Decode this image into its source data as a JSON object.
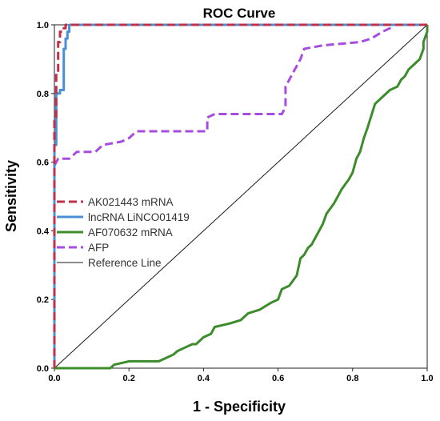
{
  "chart_data": {
    "type": "line",
    "title": "ROC Curve",
    "xlabel": "1 - Specificity",
    "ylabel": "Sensitivity",
    "xlim": [
      0,
      1
    ],
    "ylim": [
      0,
      1
    ],
    "x_ticks": [
      "0.0",
      "0.2",
      "0.4",
      "0.6",
      "0.8",
      "1.0"
    ],
    "y_ticks": [
      "0.0",
      "0.2",
      "0.4",
      "0.6",
      "0.8",
      "1.0"
    ],
    "grid": false,
    "legend_position": "left",
    "series": [
      {
        "name": "AK021443 mRNA",
        "color": "#c0304a",
        "style": "dashed",
        "points": [
          [
            0,
            0
          ],
          [
            0,
            0.72
          ],
          [
            0.005,
            0.72
          ],
          [
            0.005,
            0.86
          ],
          [
            0.01,
            0.86
          ],
          [
            0.01,
            0.95
          ],
          [
            0.015,
            0.95
          ],
          [
            0.015,
            0.98
          ],
          [
            0.025,
            0.98
          ],
          [
            0.025,
            0.99
          ],
          [
            0.03,
            0.99
          ],
          [
            0.03,
            1.0
          ],
          [
            1.0,
            1.0
          ]
        ]
      },
      {
        "name": "lncRNA LiNCO01419",
        "color": "#4a8fd4",
        "style": "solid",
        "points": [
          [
            0,
            0
          ],
          [
            0,
            0.65
          ],
          [
            0.005,
            0.65
          ],
          [
            0.005,
            0.8
          ],
          [
            0.015,
            0.8
          ],
          [
            0.015,
            0.81
          ],
          [
            0.025,
            0.81
          ],
          [
            0.025,
            0.93
          ],
          [
            0.03,
            0.93
          ],
          [
            0.03,
            0.96
          ],
          [
            0.035,
            0.96
          ],
          [
            0.035,
            0.98
          ],
          [
            0.04,
            0.98
          ],
          [
            0.04,
            1.0
          ],
          [
            1.0,
            1.0
          ]
        ]
      },
      {
        "name": "AF070632 mRNA",
        "color": "#3c8c2c",
        "style": "solid",
        "points": [
          [
            0,
            0
          ],
          [
            0.15,
            0
          ],
          [
            0.16,
            0.01
          ],
          [
            0.2,
            0.02
          ],
          [
            0.28,
            0.02
          ],
          [
            0.3,
            0.03
          ],
          [
            0.32,
            0.04
          ],
          [
            0.33,
            0.05
          ],
          [
            0.35,
            0.06
          ],
          [
            0.37,
            0.07
          ],
          [
            0.38,
            0.07
          ],
          [
            0.4,
            0.09
          ],
          [
            0.42,
            0.1
          ],
          [
            0.43,
            0.12
          ],
          [
            0.47,
            0.13
          ],
          [
            0.5,
            0.14
          ],
          [
            0.52,
            0.16
          ],
          [
            0.55,
            0.17
          ],
          [
            0.58,
            0.19
          ],
          [
            0.6,
            0.2
          ],
          [
            0.61,
            0.23
          ],
          [
            0.63,
            0.24
          ],
          [
            0.65,
            0.27
          ],
          [
            0.66,
            0.32
          ],
          [
            0.67,
            0.33
          ],
          [
            0.68,
            0.35
          ],
          [
            0.69,
            0.36
          ],
          [
            0.7,
            0.38
          ],
          [
            0.71,
            0.4
          ],
          [
            0.72,
            0.42
          ],
          [
            0.73,
            0.45
          ],
          [
            0.75,
            0.48
          ],
          [
            0.76,
            0.5
          ],
          [
            0.77,
            0.52
          ],
          [
            0.79,
            0.55
          ],
          [
            0.8,
            0.57
          ],
          [
            0.81,
            0.61
          ],
          [
            0.82,
            0.63
          ],
          [
            0.83,
            0.67
          ],
          [
            0.84,
            0.7
          ],
          [
            0.86,
            0.77
          ],
          [
            0.88,
            0.79
          ],
          [
            0.9,
            0.81
          ],
          [
            0.92,
            0.82
          ],
          [
            0.93,
            0.84
          ],
          [
            0.94,
            0.85
          ],
          [
            0.95,
            0.87
          ],
          [
            0.96,
            0.88
          ],
          [
            0.98,
            0.9
          ],
          [
            0.99,
            0.93
          ],
          [
            0.99,
            0.95
          ],
          [
            1.0,
            0.98
          ],
          [
            1.0,
            1.0
          ]
        ]
      },
      {
        "name": "AFP",
        "color": "#a64de0",
        "style": "dashed",
        "points": [
          [
            0,
            0.59
          ],
          [
            0.005,
            0.6
          ],
          [
            0.01,
            0.61
          ],
          [
            0.04,
            0.61
          ],
          [
            0.06,
            0.63
          ],
          [
            0.11,
            0.63
          ],
          [
            0.13,
            0.65
          ],
          [
            0.18,
            0.66
          ],
          [
            0.2,
            0.67
          ],
          [
            0.21,
            0.68
          ],
          [
            0.22,
            0.69
          ],
          [
            0.41,
            0.69
          ],
          [
            0.41,
            0.73
          ],
          [
            0.43,
            0.74
          ],
          [
            0.61,
            0.74
          ],
          [
            0.62,
            0.76
          ],
          [
            0.62,
            0.82
          ],
          [
            0.63,
            0.84
          ],
          [
            0.64,
            0.86
          ],
          [
            0.65,
            0.88
          ],
          [
            0.66,
            0.9
          ],
          [
            0.67,
            0.93
          ],
          [
            0.72,
            0.94
          ],
          [
            0.82,
            0.95
          ],
          [
            0.85,
            0.96
          ],
          [
            0.88,
            0.98
          ],
          [
            0.9,
            0.99
          ],
          [
            0.91,
            1.0
          ],
          [
            1.0,
            1.0
          ]
        ]
      },
      {
        "name": "Reference Line",
        "color": "#1a1a1a",
        "style": "thin",
        "points": [
          [
            0,
            0
          ],
          [
            1,
            1
          ]
        ]
      }
    ]
  }
}
